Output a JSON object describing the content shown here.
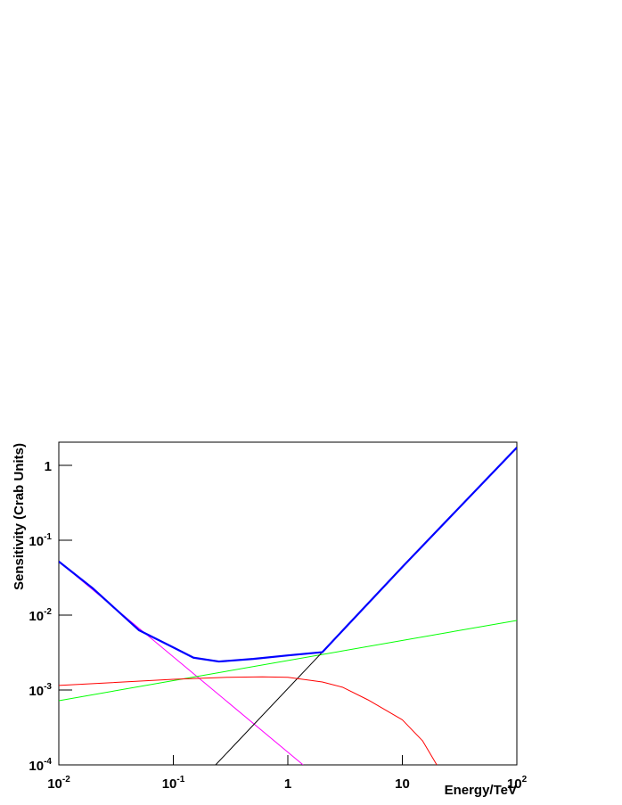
{
  "chart_data": {
    "type": "line",
    "log_x": true,
    "log_y": true,
    "xlabel": "Energy/TeV",
    "ylabel": "Sensitivity (Crab Units)",
    "xlim": [
      0.01,
      100
    ],
    "ylim": [
      0.0001,
      2.04
    ],
    "xticks": [
      {
        "value": 0.01,
        "label": "10",
        "sup": "-2"
      },
      {
        "value": 0.1,
        "label": "10",
        "sup": "-1"
      },
      1,
      10,
      {
        "value": 100,
        "label": "10",
        "sup": "2"
      }
    ],
    "yticks": [
      {
        "value": 0.0001,
        "label": "10",
        "sup": "-4"
      },
      {
        "value": 0.001,
        "label": "10",
        "sup": "-3"
      },
      {
        "value": 0.01,
        "label": "10",
        "sup": "-2"
      },
      {
        "value": 0.1,
        "label": "10",
        "sup": "-1"
      },
      1
    ],
    "series": [
      {
        "color": "#ff00ff",
        "width": 1,
        "x": [
          0.01,
          1.36
        ],
        "values": [
          0.052,
          0.0001
        ]
      },
      {
        "color": "#00ff00",
        "width": 1,
        "x": [
          0.01,
          100
        ],
        "values": [
          0.00072,
          0.0085
        ]
      },
      {
        "color": "#000000",
        "width": 1,
        "x": [
          0.234,
          2
        ],
        "values": [
          0.0001,
          0.0032
        ]
      },
      {
        "color": "#ff0000",
        "width": 1,
        "x": [
          0.01,
          0.1,
          0.3,
          0.6,
          1,
          2,
          3,
          5,
          10,
          15,
          20
        ],
        "values": [
          0.00115,
          0.00139,
          0.00148,
          0.0015,
          0.00148,
          0.00128,
          0.00109,
          0.00074,
          0.0004,
          0.00021,
          0.0001
        ]
      },
      {
        "color": "#0000ff",
        "width": 2.2,
        "x": [
          0.01,
          0.02,
          0.05,
          0.1,
          0.15,
          0.25,
          0.5,
          1,
          2,
          10,
          100
        ],
        "values": [
          0.052,
          0.0225,
          0.0063,
          0.0037,
          0.0027,
          0.0024,
          0.0026,
          0.0029,
          0.0032,
          0.044,
          1.73
        ]
      }
    ]
  }
}
